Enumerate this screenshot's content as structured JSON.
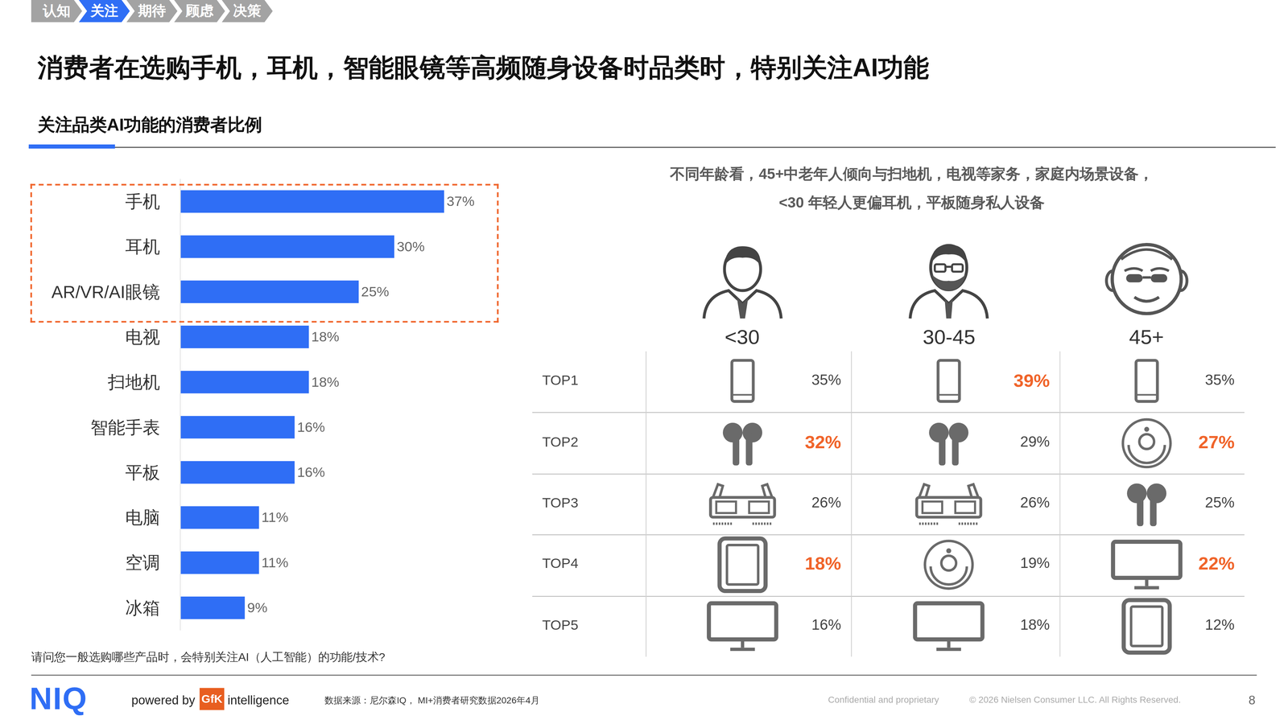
{
  "nav": [
    {
      "label": "认知",
      "active": false
    },
    {
      "label": "关注",
      "active": true
    },
    {
      "label": "期待",
      "active": false
    },
    {
      "label": "顾虑",
      "active": false
    },
    {
      "label": "决策",
      "active": false
    }
  ],
  "title": "消费者在选购手机，耳机，智能眼镜等高频随身设备时品类时，特别关注AI功能",
  "subtitle": "关注品类AI功能的消费者比例",
  "chart_data": {
    "type": "bar",
    "orientation": "horizontal",
    "categories": [
      "手机",
      "耳机",
      "AR/VR/AI眼镜",
      "电视",
      "扫地机",
      "智能手表",
      "平板",
      "电脑",
      "空调",
      "冰箱"
    ],
    "values": [
      37,
      30,
      25,
      18,
      18,
      16,
      16,
      11,
      11,
      9
    ],
    "value_labels": [
      "37%",
      "30%",
      "25%",
      "18%",
      "18%",
      "16%",
      "16%",
      "11%",
      "11%",
      "9%"
    ],
    "color": "#2f6ef5",
    "xlim": [
      0,
      45
    ],
    "data_labels": true,
    "tick_labels": "y"
  },
  "highlight": {
    "categories": [
      "手机",
      "耳机",
      "AR/VR/AI眼镜"
    ]
  },
  "question": "请问您一般选购哪些产品时，会特别关注AI（人工智能）的功能/技术?",
  "age_panel": {
    "caption": [
      "不同年龄看，45+中老年人倾向与扫地机，电视等家务，家庭内场景设备，",
      "<30 年轻人更偏耳机，平板随身私人设备"
    ],
    "ranks": [
      "TOP1",
      "TOP2",
      "TOP3",
      "TOP4",
      "TOP5"
    ],
    "columns": [
      {
        "group": "<30",
        "items": [
          {
            "item": "手机",
            "value": "35%",
            "highlight": false
          },
          {
            "item": "耳机",
            "value": "32%",
            "highlight": true
          },
          {
            "item": "AR/VR/AI眼镜",
            "value": "26%",
            "highlight": false
          },
          {
            "item": "平板",
            "value": "18%",
            "highlight": true
          },
          {
            "item": "电视",
            "value": "16%",
            "highlight": false
          }
        ]
      },
      {
        "group": "30-45",
        "items": [
          {
            "item": "手机",
            "value": "39%",
            "highlight": true
          },
          {
            "item": "耳机",
            "value": "29%",
            "highlight": false
          },
          {
            "item": "AR/VR/AI眼镜",
            "value": "26%",
            "highlight": false
          },
          {
            "item": "扫地机",
            "value": "19%",
            "highlight": false
          },
          {
            "item": "电视",
            "value": "18%",
            "highlight": false
          }
        ]
      },
      {
        "group": "45+",
        "items": [
          {
            "item": "手机",
            "value": "35%",
            "highlight": false
          },
          {
            "item": "扫地机",
            "value": "27%",
            "highlight": true
          },
          {
            "item": "耳机",
            "value": "25%",
            "highlight": false
          },
          {
            "item": "电视",
            "value": "22%",
            "highlight": true
          },
          {
            "item": "平板",
            "value": "12%",
            "highlight": false
          }
        ]
      }
    ]
  },
  "footer": {
    "logo": "NIQ",
    "powered_by": "powered by",
    "partner_logo": "GfK",
    "partner_suffix": "intelligence",
    "source": "数据来源：尼尔森IQ， MI+消费者研究数据2026年4月",
    "confidential": "Confidential and proprietary",
    "copyright": "© 2026 Nielsen Consumer LLC. All Rights Reserved.",
    "page": "8"
  }
}
